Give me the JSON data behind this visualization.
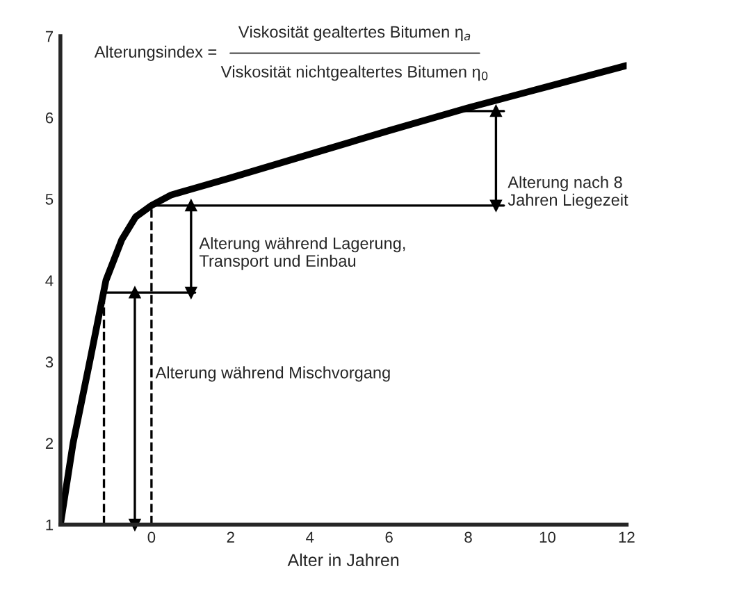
{
  "chart_data": {
    "type": "line",
    "xlabel": "Alter in Jahren",
    "xlim": [
      -2.3,
      12
    ],
    "xticks": [
      0,
      2,
      4,
      6,
      8,
      10,
      12
    ],
    "ylim": [
      1,
      7
    ],
    "yticks": [
      1,
      2,
      3,
      4,
      5,
      6,
      7
    ],
    "grid": false,
    "series": [
      {
        "color": "#000000",
        "x": [
          -2.3,
          -1.98,
          -1.56,
          -1.15,
          -0.75,
          -0.4,
          0,
          0.5,
          1,
          2,
          4,
          6,
          8,
          10,
          12
        ],
        "values": [
          1,
          2,
          3,
          4,
          4.5,
          4.78,
          4.92,
          5.05,
          5.12,
          5.26,
          5.55,
          5.84,
          6.12,
          6.38,
          6.64
        ]
      },
      {
        "color": "#000000",
        "x": [
          -1.2,
          1.1
        ],
        "values": [
          3.85,
          3.85
        ]
      },
      {
        "color": "#000000",
        "x": [
          0,
          8.9
        ],
        "values": [
          4.92,
          4.92
        ]
      },
      {
        "color": "#000000",
        "x": [
          7.75,
          8.9
        ],
        "values": [
          6.08,
          6.08
        ]
      },
      {
        "color": "#000000",
        "line_style": "dashed",
        "x": [
          -1.2,
          -1.2
        ],
        "values": [
          1,
          3.75
        ]
      },
      {
        "color": "#000000",
        "line_style": "dashed",
        "x": [
          0,
          0
        ],
        "values": [
          1,
          4.9
        ]
      },
      {
        "color": "#000000",
        "marker": "triangle",
        "x": [
          -0.42,
          -0.42
        ],
        "values": [
          1,
          3.85
        ]
      },
      {
        "color": "#000000",
        "marker": "triangle",
        "x": [
          1.0,
          1.0
        ],
        "values": [
          3.85,
          4.92
        ]
      },
      {
        "color": "#000000",
        "marker": "triangle",
        "x": [
          8.7,
          8.7
        ],
        "values": [
          4.92,
          6.08
        ]
      }
    ],
    "annotations": [
      "Alterungsindex =",
      "Viskosität gealtertes Bitumen η$_{a}$",
      "Viskosität nichtgealtertes Bitumen η$_{0}$",
      "Alterung nach 8\nJahren Liegezeit",
      "Alterung während Lagerung,\nTransport und Einbau",
      {
        "text": "Alterung während Mischvorgang",
        "x": 0.1,
        "y": 2.85
      }
    ]
  }
}
